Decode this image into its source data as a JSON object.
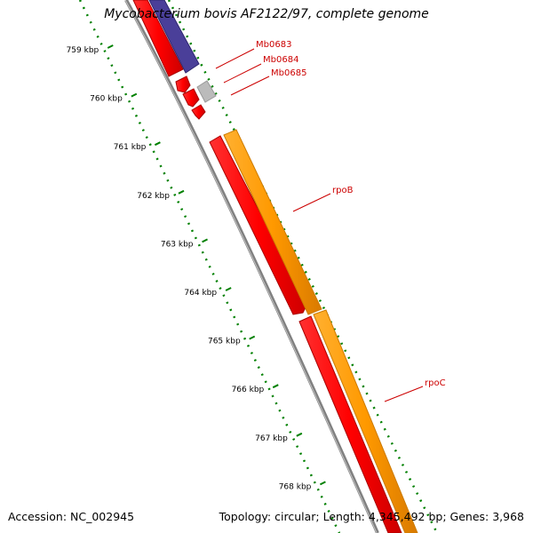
{
  "title": "Mycobacterium bovis AF2122/97, complete genome",
  "footer": {
    "accession": "Accession: NC_002945",
    "topology": "Topology: circular; Length: 4,345,492 bp; Genes: 3,968"
  },
  "colors": {
    "background": "#ffffff",
    "cds_forward": "#ff9900",
    "cds_reverse": "#ff0000",
    "other_feature_reverse": "#4a3f99",
    "other_feature_forward": "#bbbbbb",
    "backbone": "#808080",
    "ticks": "#008000",
    "labels": "#cc0000"
  },
  "scale_labels": [
    "759 kbp",
    "760 kbp",
    "761 kbp",
    "762 kbp",
    "763 kbp",
    "764 kbp",
    "765 kbp",
    "766 kbp",
    "767 kbp",
    "768 kbp"
  ],
  "gene_labels": [
    "Mb0683",
    "Mb0684",
    "Mb0685",
    "rpoB",
    "rpoC"
  ]
}
